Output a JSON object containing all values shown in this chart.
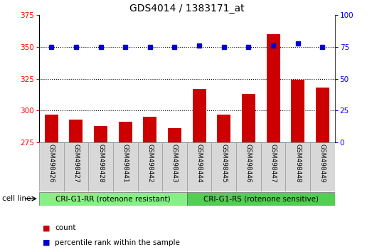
{
  "title": "GDS4014 / 1383171_at",
  "categories": [
    "GSM498426",
    "GSM498427",
    "GSM498428",
    "GSM498441",
    "GSM498442",
    "GSM498443",
    "GSM498444",
    "GSM498445",
    "GSM498446",
    "GSM498447",
    "GSM498448",
    "GSM498449"
  ],
  "bar_values": [
    297,
    293,
    288,
    291,
    295,
    286,
    317,
    297,
    313,
    360,
    324,
    318
  ],
  "dot_values": [
    75,
    75,
    75,
    75,
    75,
    75,
    76,
    75,
    75,
    76,
    78,
    75
  ],
  "bar_color": "#cc0000",
  "dot_color": "#0000cc",
  "group1_label": "CRI-G1-RR (rotenone resistant)",
  "group2_label": "CRI-G1-RS (rotenone sensitive)",
  "group1_color": "#88ee88",
  "group2_color": "#55cc55",
  "group1_count": 6,
  "group2_count": 6,
  "ylim_left": [
    275,
    375
  ],
  "ylim_right": [
    0,
    100
  ],
  "yticks_left": [
    275,
    300,
    325,
    350,
    375
  ],
  "yticks_right": [
    0,
    25,
    50,
    75,
    100
  ],
  "xcell_bg": "#d8d8d8",
  "plot_bg_color": "#ffffff",
  "legend_count_label": "count",
  "legend_pct_label": "percentile rank within the sample",
  "cell_line_label": "cell line",
  "title_fontsize": 10,
  "tick_fontsize": 7.5,
  "label_fontsize": 7.5,
  "xticklabel_fontsize": 6.5,
  "group_fontsize": 7.5,
  "legend_fontsize": 7.5
}
